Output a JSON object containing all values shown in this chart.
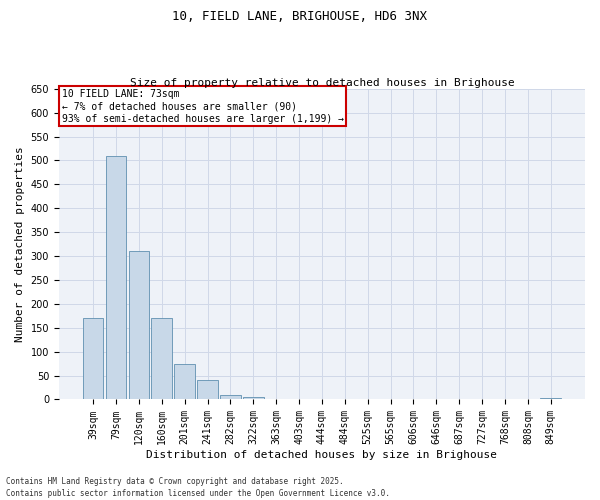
{
  "title": "10, FIELD LANE, BRIGHOUSE, HD6 3NX",
  "subtitle": "Size of property relative to detached houses in Brighouse",
  "xlabel": "Distribution of detached houses by size in Brighouse",
  "ylabel": "Number of detached properties",
  "categories": [
    "39sqm",
    "79sqm",
    "120sqm",
    "160sqm",
    "201sqm",
    "241sqm",
    "282sqm",
    "322sqm",
    "363sqm",
    "403sqm",
    "444sqm",
    "484sqm",
    "525sqm",
    "565sqm",
    "606sqm",
    "646sqm",
    "687sqm",
    "727sqm",
    "768sqm",
    "808sqm",
    "849sqm"
  ],
  "values": [
    170,
    510,
    310,
    170,
    75,
    40,
    10,
    5,
    2,
    0,
    0,
    0,
    0,
    0,
    0,
    0,
    0,
    0,
    0,
    0,
    3
  ],
  "bar_color": "#c8d8e8",
  "bar_edge_color": "#6090b0",
  "grid_color": "#d0d8e8",
  "background_color": "#eef2f8",
  "ylim": [
    0,
    650
  ],
  "yticks": [
    0,
    50,
    100,
    150,
    200,
    250,
    300,
    350,
    400,
    450,
    500,
    550,
    600,
    650
  ],
  "annotation_box_text": "10 FIELD LANE: 73sqm\n← 7% of detached houses are smaller (90)\n93% of semi-detached houses are larger (1,199) →",
  "annotation_box_facecolor": "#ffffff",
  "annotation_box_edgecolor": "#cc0000",
  "footnote": "Contains HM Land Registry data © Crown copyright and database right 2025.\nContains public sector information licensed under the Open Government Licence v3.0.",
  "title_fontsize": 9,
  "subtitle_fontsize": 8,
  "ylabel_fontsize": 8,
  "xlabel_fontsize": 8,
  "tick_fontsize": 7,
  "annot_fontsize": 7,
  "footnote_fontsize": 5.5
}
